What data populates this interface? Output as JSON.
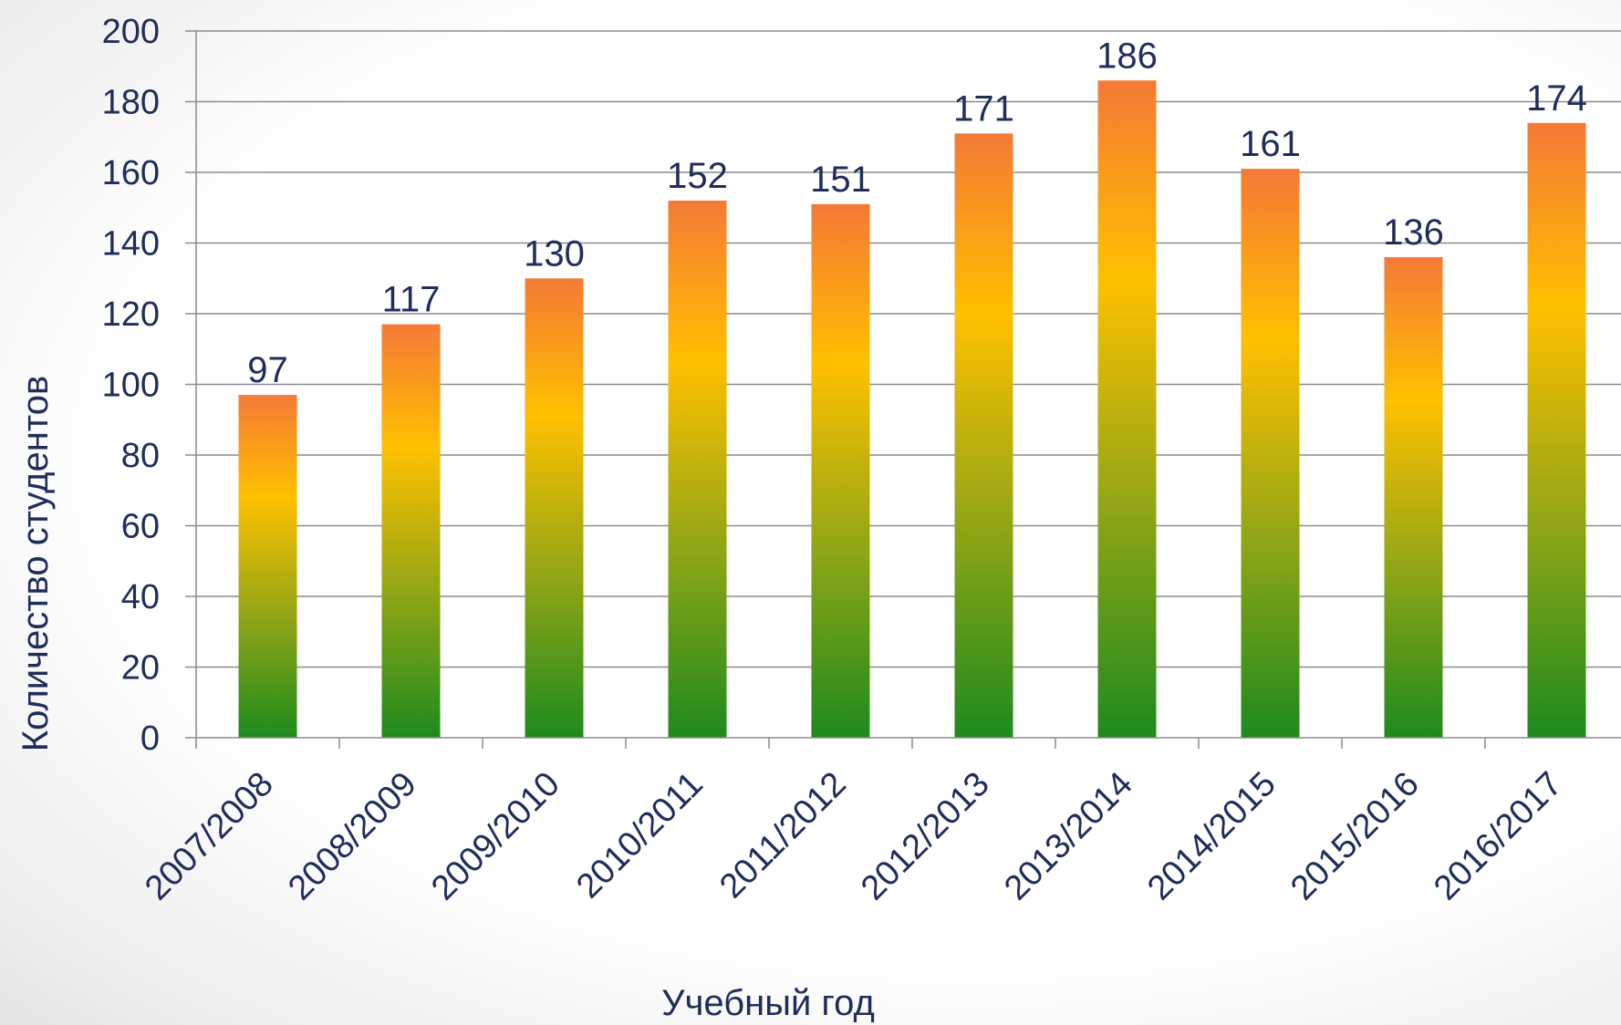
{
  "colors": {
    "text": "#1f2d5a",
    "grid": "#8c8c8c",
    "bar_top": "#f47a36",
    "bar_mid": "#ffc000",
    "bar_bottom": "#1e8a1e"
  },
  "chart_data": {
    "type": "bar",
    "title": "",
    "xlabel": "Учебный год",
    "ylabel": "Количество студентов",
    "categories": [
      "2007/2008",
      "2008/2009",
      "2009/2010",
      "2010/2011",
      "2011/2012",
      "2012/2013",
      "2013/2014",
      "2014/2015",
      "2015/2016",
      "2016/2017"
    ],
    "values": [
      97,
      117,
      130,
      152,
      151,
      171,
      186,
      161,
      136,
      174
    ],
    "ylim": [
      0,
      200
    ],
    "yticks": [
      0,
      20,
      40,
      60,
      80,
      100,
      120,
      140,
      160,
      180,
      200
    ],
    "grid": true,
    "legend": "none"
  }
}
